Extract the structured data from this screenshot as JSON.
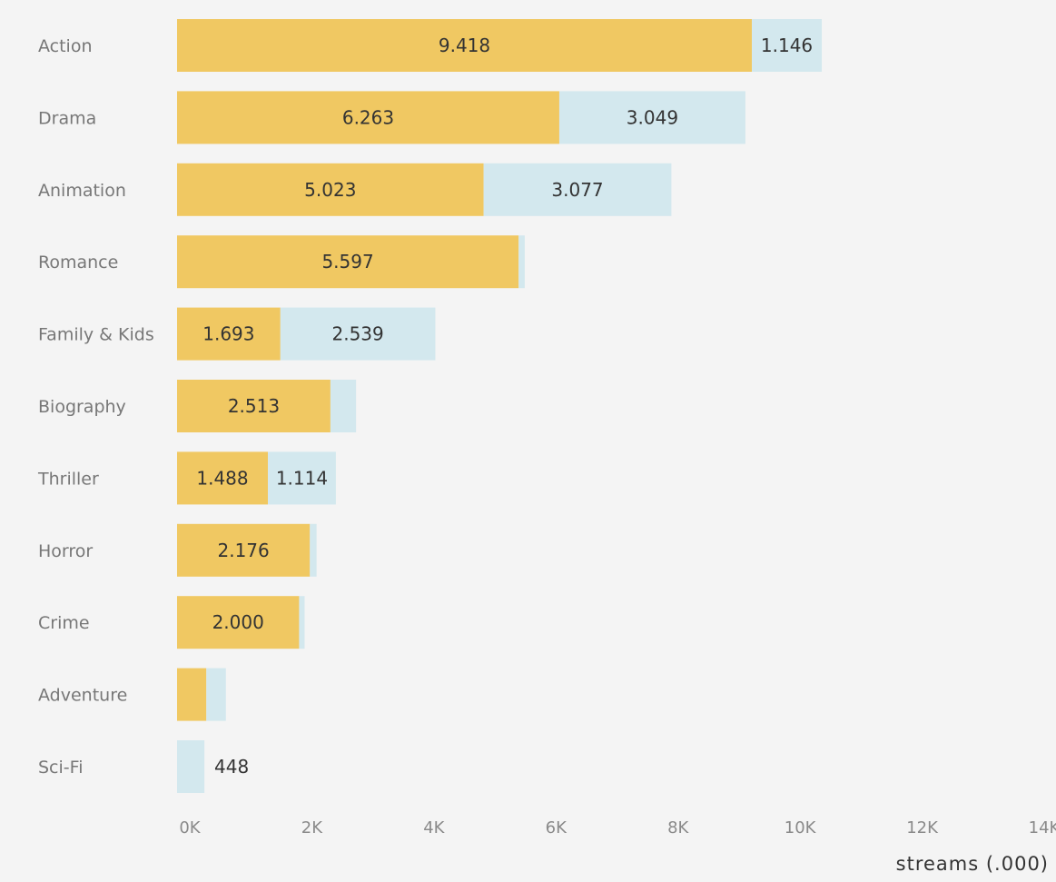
{
  "chart_data": {
    "type": "bar",
    "orientation": "horizontal",
    "stacked": true,
    "categories": [
      "Action",
      "Drama",
      "Animation",
      "Romance",
      "Family & Kids",
      "Biography",
      "Thriller",
      "Horror",
      "Crime",
      "Adventure",
      "Sci-Fi"
    ],
    "series": [
      {
        "color": "#f0c862",
        "values": [
          9418,
          6263,
          5023,
          5597,
          1693,
          2513,
          1488,
          2176,
          2000,
          480,
          0
        ],
        "labels": [
          "9.418",
          "6.263",
          "5.023",
          "5.597",
          "1.693",
          "2.513",
          "1.488",
          "2.176",
          "2.000",
          "",
          ""
        ]
      },
      {
        "color": "#d3e8ee",
        "values": [
          1146,
          3049,
          3077,
          100,
          2539,
          420,
          1114,
          110,
          90,
          320,
          448
        ],
        "labels": [
          "1.146",
          "3.049",
          "3.077",
          "",
          "2.539",
          "",
          "1.114",
          "",
          "",
          "",
          "448"
        ]
      }
    ],
    "xlabel": "streams (.000)",
    "xlim": [
      0,
      14000
    ],
    "xticks": [
      0,
      2000,
      4000,
      6000,
      8000,
      10000,
      12000,
      14000
    ],
    "xtick_labels": [
      "0K",
      "2K",
      "4K",
      "6K",
      "8K",
      "10K",
      "12K",
      "14K"
    ],
    "grid": false,
    "legend": "none"
  }
}
